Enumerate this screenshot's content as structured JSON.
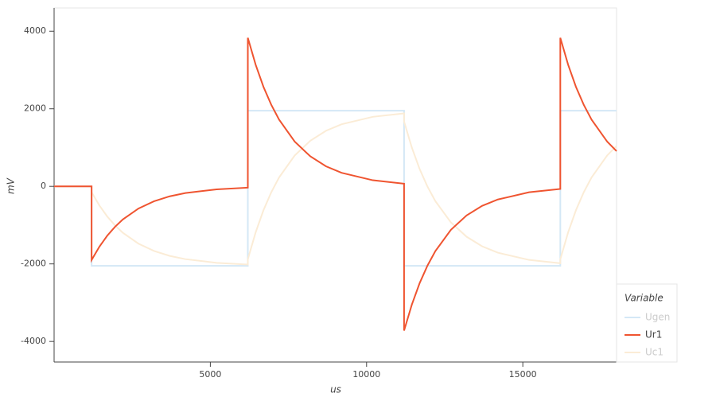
{
  "chart_data": {
    "type": "line",
    "x_label": "us",
    "y_label": "mV",
    "x": [
      0,
      1200,
      1200,
      1450,
      1700,
      1950,
      2200,
      2700,
      3200,
      3700,
      4200,
      5200,
      6200,
      6200,
      6450,
      6700,
      6950,
      7200,
      7700,
      8200,
      8700,
      9200,
      10200,
      11200,
      11200,
      11450,
      11700,
      11950,
      12200,
      12700,
      13200,
      13700,
      14200,
      15200,
      16200,
      16200,
      16450,
      16700,
      16950,
      17200,
      17700,
      18000
    ],
    "series": [
      {
        "name": "Ugen",
        "color": "#d4e8f6",
        "muted": true,
        "values": [
          0,
          0,
          -2050,
          -2050,
          -2050,
          -2050,
          -2050,
          -2050,
          -2050,
          -2050,
          -2050,
          -2050,
          -2050,
          1950,
          1950,
          1950,
          1950,
          1950,
          1950,
          1950,
          1950,
          1950,
          1950,
          1950,
          -2050,
          -2050,
          -2050,
          -2050,
          -2050,
          -2050,
          -2050,
          -2050,
          -2050,
          -2050,
          -2050,
          1950,
          1950,
          1950,
          1950,
          1950,
          1950,
          1950
        ]
      },
      {
        "name": "Ur1",
        "color": "#ef5430",
        "muted": false,
        "values": [
          0,
          0,
          -1900,
          -1556,
          -1273,
          -1043,
          -853,
          -572,
          -384,
          -257,
          -173,
          -78,
          -34,
          3830,
          3137,
          2566,
          2103,
          1720,
          1153,
          774,
          517,
          349,
          157,
          69,
          -3720,
          -3047,
          -2492,
          -2042,
          -1670,
          -1120,
          -751,
          -502,
          -339,
          -153,
          -67,
          3830,
          3137,
          2566,
          2103,
          1720,
          1153,
          908
        ]
      },
      {
        "name": "Uc1",
        "color": "#fbecd6",
        "muted": true,
        "values": [
          0,
          0,
          -150,
          -494,
          -777,
          -1007,
          -1197,
          -1478,
          -1666,
          -1793,
          -1877,
          -1972,
          -2016,
          -1880,
          -1187,
          -616,
          -153,
          230,
          797,
          1176,
          1433,
          1601,
          1793,
          1881,
          1670,
          997,
          442,
          -8,
          -380,
          -930,
          -1299,
          -1548,
          -1711,
          -1897,
          -1983,
          -1880,
          -1187,
          -616,
          -153,
          230,
          797,
          1042
        ]
      }
    ],
    "xlim": [
      0,
      18000
    ],
    "xticks": [
      5000,
      10000,
      15000
    ],
    "ylim": [
      -4530,
      4600
    ],
    "yticks": [
      -4000,
      -2000,
      0,
      2000,
      4000
    ],
    "grid": false,
    "legend": "bottom-right",
    "legend_title": "Variable"
  }
}
